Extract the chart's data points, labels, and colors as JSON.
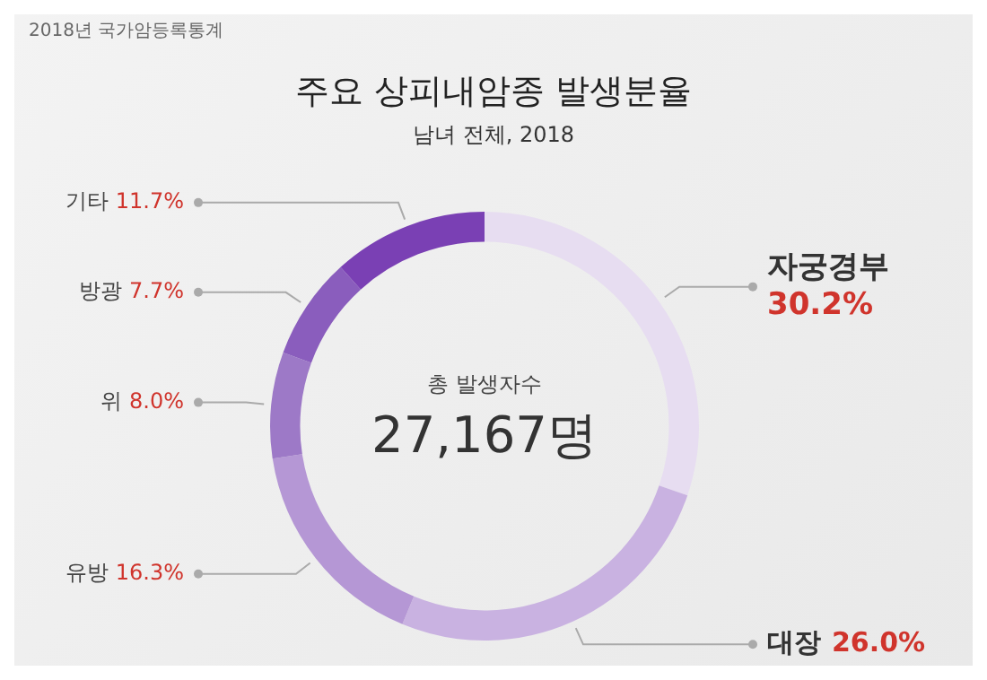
{
  "chart_data": {
    "type": "donut",
    "title": "주요 상피내암종 발생분율",
    "subtitle": "남녀 전체, 2018",
    "annotations": [
      "2018년 국가암등록통계",
      "총 발생자수",
      "27,167명"
    ],
    "categories": [
      "자궁경부",
      "대장",
      "유방",
      "위",
      "방광",
      "기타"
    ],
    "values": [
      30.2,
      26.0,
      16.3,
      8.0,
      7.7,
      11.7
    ],
    "value_labels": [
      "30.2%",
      "26.0%",
      "16.3%",
      "8.0%",
      "7.7%",
      "11.7%"
    ],
    "colors": [
      "#e7ddf1",
      "#c9b2e1",
      "#b597d5",
      "#9d79c7",
      "#8a5dbd",
      "#7a40b4"
    ],
    "legend": false
  }
}
